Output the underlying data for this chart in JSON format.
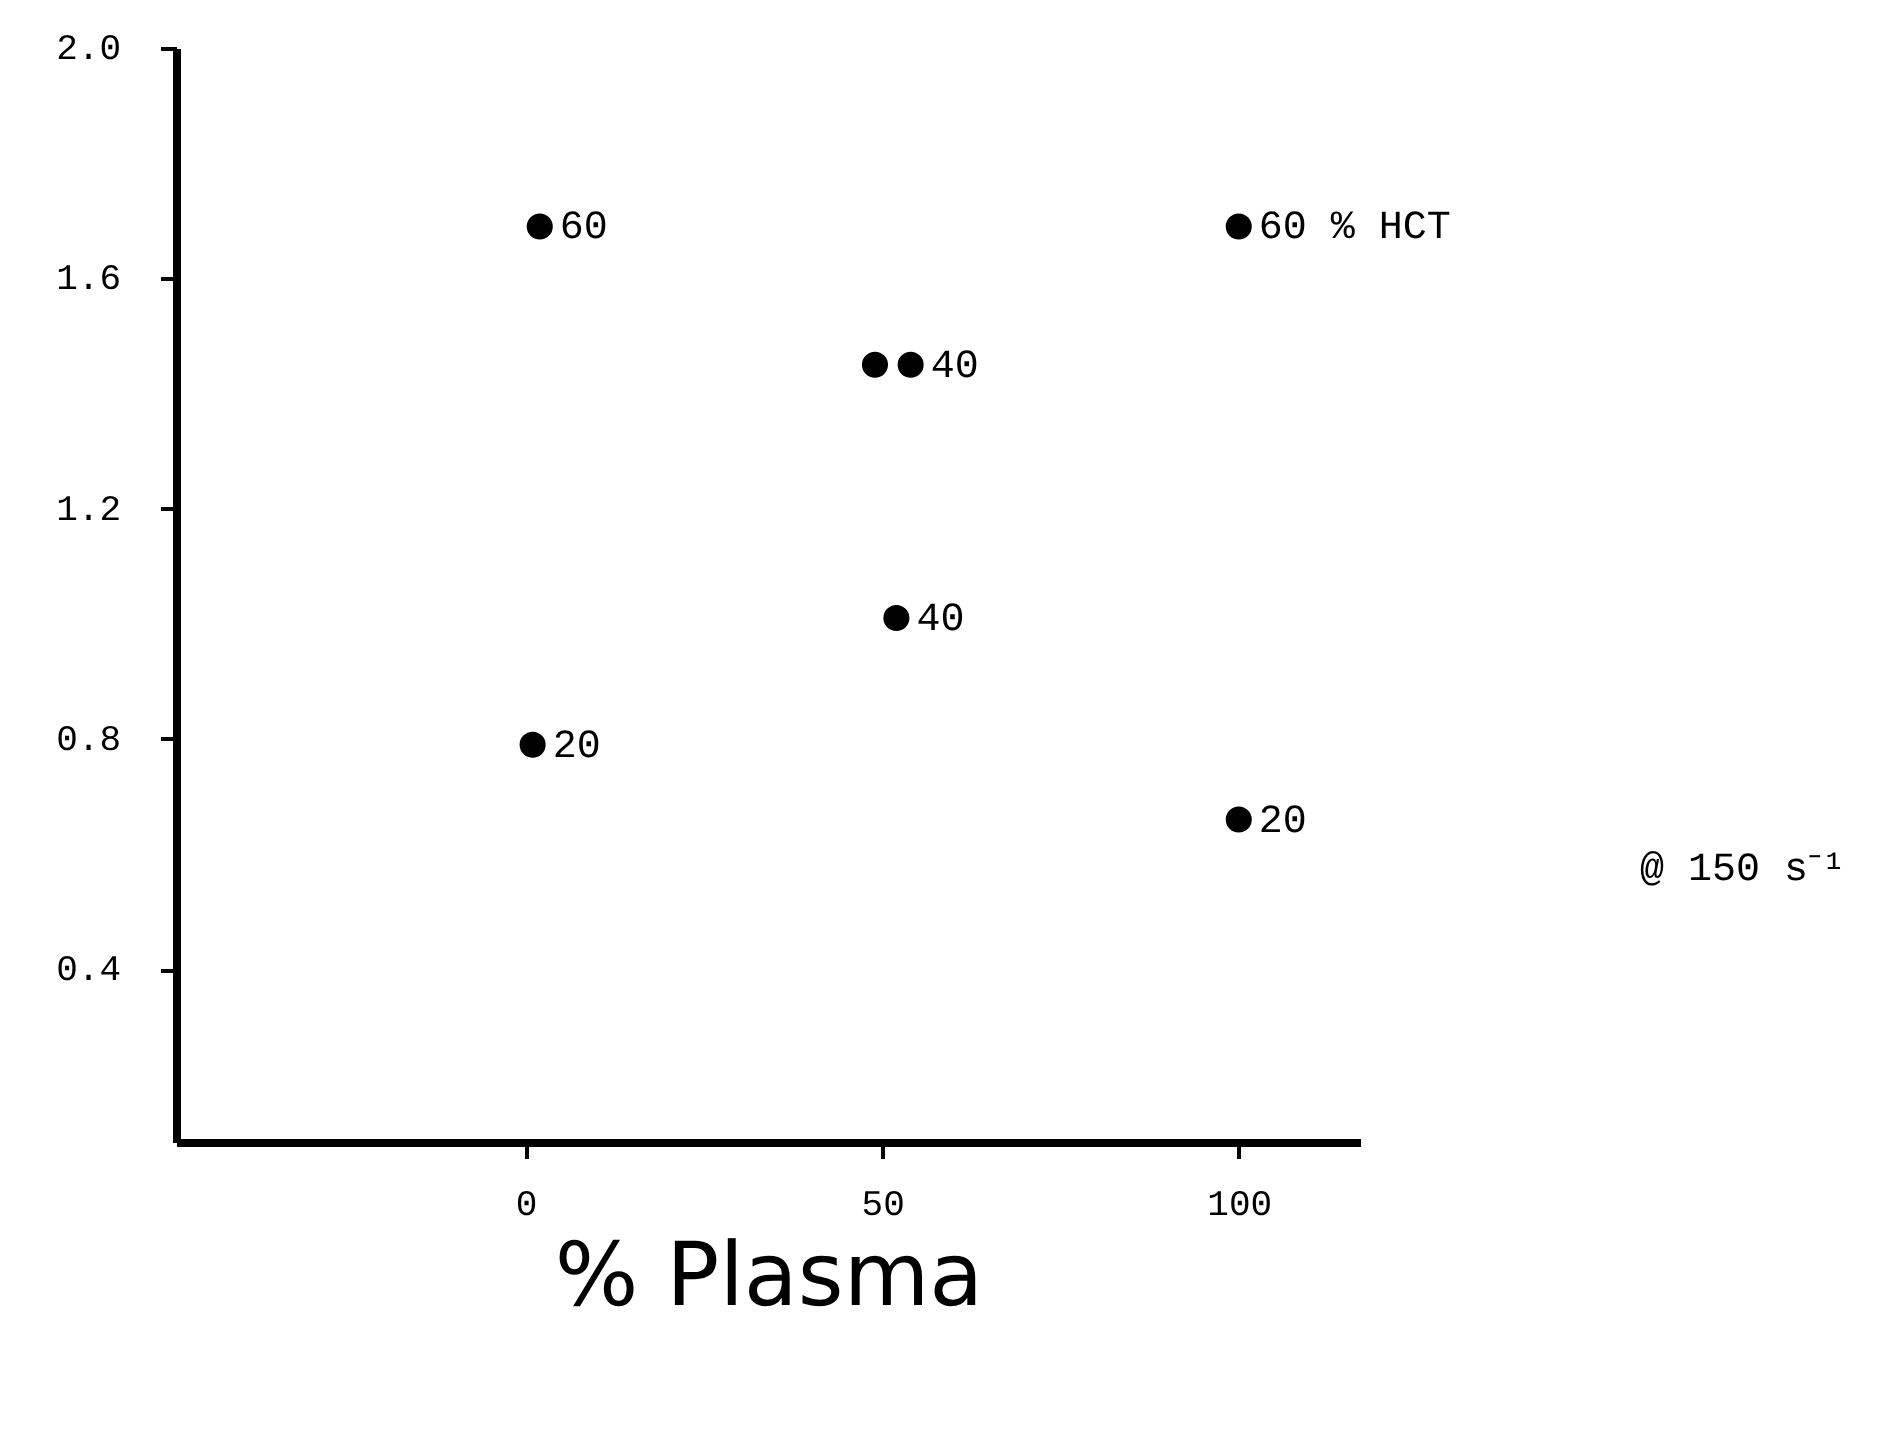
{
  "chart_data": {
    "type": "scatter",
    "xlabel": "% Plasma",
    "x": [
      2,
      1,
      49,
      54,
      52,
      100,
      100
    ],
    "values": [
      1.69,
      0.79,
      1.45,
      1.45,
      1.01,
      1.69,
      0.66
    ],
    "color": "#000000",
    "marker": "circle",
    "xlim": [
      -49,
      117
    ],
    "xticks": [
      0,
      50,
      100
    ],
    "ylim": [
      0.1,
      2.0
    ],
    "yticks": [
      {
        "value": 0.4,
        "label": "0.4"
      },
      {
        "value": 0.8,
        "label": "0.8"
      },
      {
        "value": 1.2,
        "label": "1.2"
      },
      {
        "value": 1.6,
        "label": "1.6"
      },
      {
        "value": 2.0,
        "label": "2.0"
      }
    ],
    "grid": false,
    "annotations": [
      {
        "text": "60",
        "x": 2,
        "y": 1.69
      },
      {
        "text": "20",
        "x": 1,
        "y": 0.79
      },
      {
        "text": "40",
        "x": 54,
        "y": 1.45
      },
      {
        "text": "40",
        "x": 52,
        "y": 1.01
      },
      {
        "text": "60 % HCT",
        "x": 100,
        "y": 1.69
      },
      {
        "text": "20",
        "x": 100,
        "y": 0.66
      },
      "@ 150 s⁻¹"
    ]
  }
}
